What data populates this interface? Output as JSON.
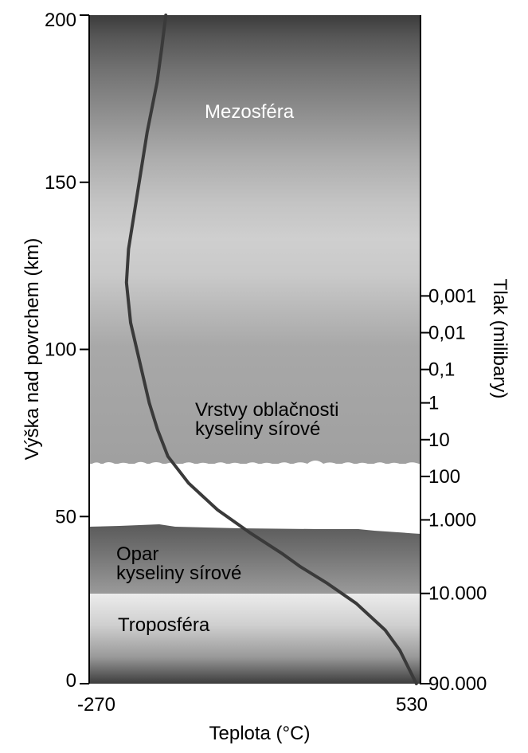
{
  "chart_data": {
    "type": "line",
    "title": "",
    "xlabel": "Teplota (°C)",
    "ylabel": "Výška nad povrchem (km)",
    "y2label": "Tlak (milibary)",
    "xlim": [
      -270,
      530
    ],
    "ylim": [
      0,
      200
    ],
    "x_ticks": [
      "-270",
      "530"
    ],
    "y_ticks": [
      0,
      50,
      100,
      150,
      200
    ],
    "y2_ticks": [
      {
        "label": "90.000",
        "altitude": 0
      },
      {
        "label": "10.000",
        "altitude": 27
      },
      {
        "label": "1.000",
        "altitude": 49
      },
      {
        "label": "100",
        "altitude": 62
      },
      {
        "label": "10",
        "altitude": 73
      },
      {
        "label": "1",
        "altitude": 84
      },
      {
        "label": "0,1",
        "altitude": 94
      },
      {
        "label": "0,01",
        "altitude": 105
      },
      {
        "label": "0,001",
        "altitude": 116
      }
    ],
    "series": [
      {
        "x": [
          -85,
          -95,
          -106,
          -130,
          -175,
          -180,
          -170,
          -155,
          -140,
          -125,
          -105,
          -80,
          -30,
          40,
          120,
          195,
          240,
          305,
          375,
          445,
          480,
          500,
          520
        ],
        "y": [
          200,
          190,
          180,
          165,
          130,
          120,
          108,
          100,
          92,
          84,
          76,
          68,
          60,
          52,
          45,
          39,
          35,
          30,
          24,
          16,
          10,
          5,
          0
        ]
      }
    ],
    "layers": [
      {
        "name": "Mezosféra",
        "label_altitude": 170
      },
      {
        "name": "Vrstvy oblačnosti kyseliny sírové",
        "lines": [
          "Vrstvy oblačnosti",
          "kyseliny sírové"
        ],
        "label_altitude": 77,
        "altitude_range": [
          47,
          65
        ]
      },
      {
        "name": "Opar kyseliny sírové",
        "lines": [
          "Opar",
          "kyseliny sírové"
        ],
        "label_altitude": 36,
        "altitude_range": [
          27,
          47
        ]
      },
      {
        "name": "Troposféra",
        "label_altitude": 18
      }
    ],
    "grid": false,
    "legend": "none"
  }
}
